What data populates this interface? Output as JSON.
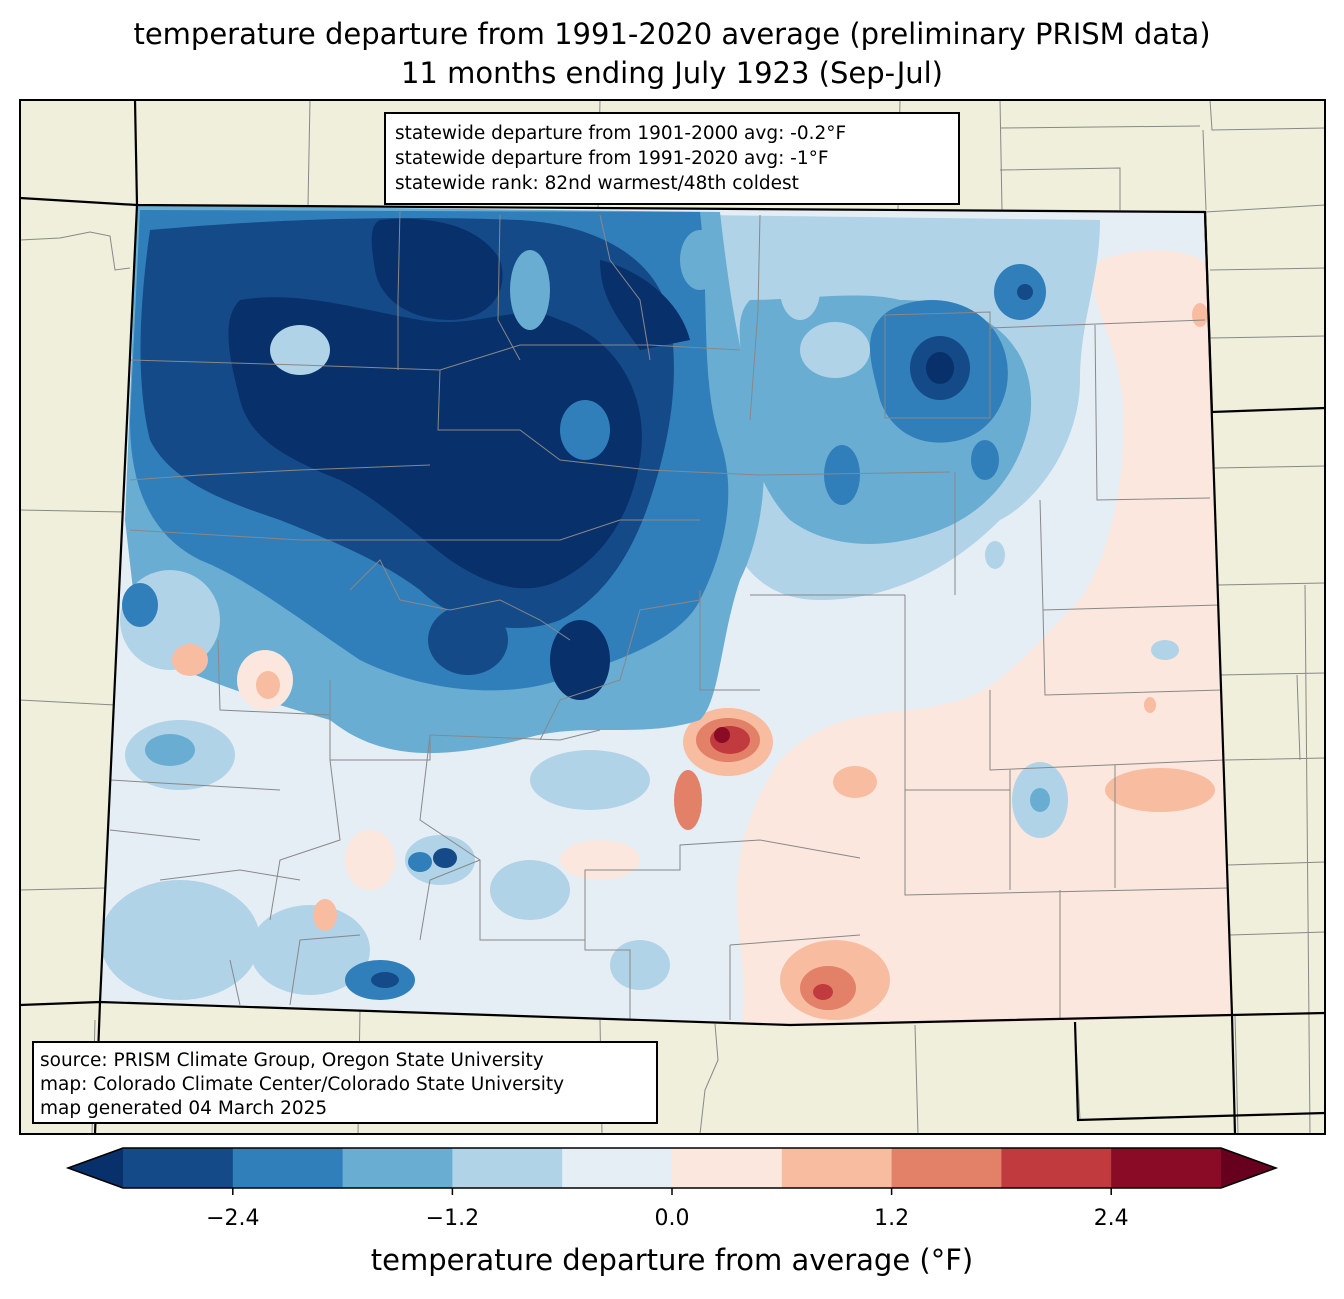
{
  "title": {
    "line1": "temperature departure from 1991-2020 average (preliminary PRISM data)",
    "line2": "11 months ending July 1923 (Sep-Jul)"
  },
  "stats": {
    "line1": "statewide departure from 1901-2000 avg: -0.2°F",
    "line2": "statewide departure from 1991-2020 avg: -1°F",
    "line3": "statewide rank: 82nd warmest/48th coldest"
  },
  "source": {
    "line1": "source: PRISM Climate Group, Oregon State University",
    "line2": "map: Colorado Climate Center/Colorado State University",
    "line3": "map generated 04 March 2025"
  },
  "colorbar": {
    "label": "temperature departure from average (°F)",
    "range": [
      -3.0,
      3.0
    ],
    "step": 0.6,
    "ticks": [
      "−2.4",
      "−1.2",
      "0.0",
      "1.2",
      "2.4"
    ],
    "tick_values": [
      -2.4,
      -1.2,
      0.0,
      1.2,
      2.4
    ],
    "colors": {
      "under": "#08306b",
      "bins": [
        "#144a87",
        "#307fba",
        "#69add3",
        "#b0d3e7",
        "#e6eef5",
        "#fbe7dd",
        "#f8bca0",
        "#e28068",
        "#c13a3e",
        "#8a0b25"
      ],
      "over": "#67001f",
      "land": "#efefdc"
    }
  }
}
